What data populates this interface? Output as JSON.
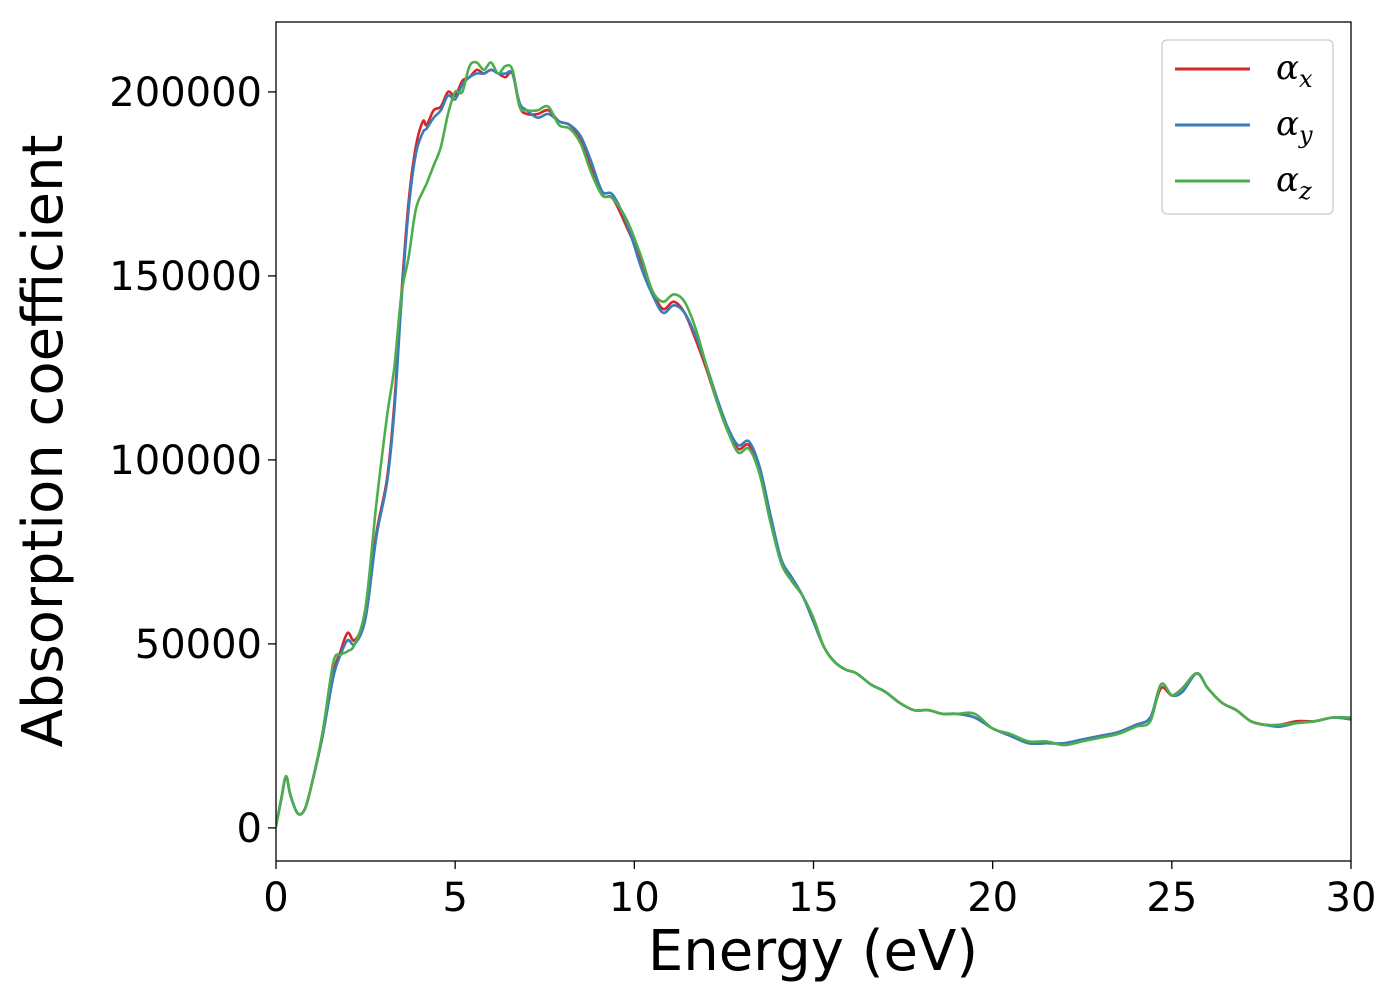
{
  "chart_data": {
    "type": "line",
    "title": "",
    "xlabel": "Energy (eV)",
    "ylabel": "Absorption coefficient",
    "xlim": [
      0,
      30
    ],
    "ylim": [
      -9000,
      219000
    ],
    "xticks": [
      0,
      5,
      10,
      15,
      20,
      25,
      30
    ],
    "xtick_labels": [
      "0",
      "5",
      "10",
      "15",
      "20",
      "25",
      "30"
    ],
    "yticks": [
      0,
      50000,
      100000,
      150000,
      200000
    ],
    "ytick_labels": [
      "0",
      "50000",
      "100000",
      "150000",
      "200000"
    ],
    "grid": false,
    "legend_position": "top-right",
    "series": [
      {
        "name": "αx",
        "legend_base": "α",
        "legend_sub": "x",
        "color": "#d62728",
        "x": [
          0,
          0.15,
          0.28,
          0.4,
          0.6,
          0.8,
          1.0,
          1.3,
          1.6,
          1.8,
          2.0,
          2.2,
          2.5,
          2.8,
          3.1,
          3.3,
          3.5,
          3.7,
          3.9,
          4.1,
          4.2,
          4.4,
          4.6,
          4.8,
          5.0,
          5.2,
          5.4,
          5.6,
          5.8,
          6.0,
          6.2,
          6.4,
          6.6,
          6.8,
          7.0,
          7.3,
          7.6,
          7.9,
          8.2,
          8.5,
          8.8,
          9.1,
          9.4,
          9.8,
          10.2,
          10.5,
          10.8,
          11.1,
          11.4,
          11.7,
          12.0,
          12.3,
          12.6,
          12.9,
          13.2,
          13.5,
          13.8,
          14.1,
          14.4,
          14.7,
          15.0,
          15.3,
          15.6,
          15.9,
          16.2,
          16.6,
          17.0,
          17.4,
          17.8,
          18.2,
          18.6,
          19.0,
          19.5,
          20.0,
          20.5,
          21.0,
          21.5,
          22.0,
          22.5,
          23.0,
          23.5,
          24.0,
          24.4,
          24.7,
          25.0,
          25.3,
          25.7,
          26.0,
          26.4,
          26.8,
          27.2,
          27.6,
          28.0,
          28.5,
          29.0,
          29.5,
          30.0
        ],
        "values": [
          500,
          8000,
          14000,
          9000,
          4000,
          5000,
          12000,
          25000,
          42000,
          48000,
          53000,
          51000,
          58000,
          80000,
          95000,
          115000,
          145000,
          170000,
          185000,
          192000,
          191000,
          195000,
          196000,
          200000,
          199000,
          203000,
          204000,
          206000,
          205000,
          206000,
          205000,
          204000,
          205000,
          196000,
          194000,
          194000,
          195000,
          192000,
          191000,
          187000,
          179000,
          172000,
          171000,
          163000,
          154000,
          146000,
          141000,
          143000,
          140000,
          133000,
          125000,
          116000,
          108000,
          103000,
          104000,
          97000,
          84000,
          72000,
          67000,
          63000,
          56000,
          49000,
          45000,
          43000,
          42000,
          39000,
          37000,
          34000,
          32000,
          32000,
          31000,
          31000,
          30000,
          27000,
          25000,
          23000,
          23000,
          23000,
          24000,
          25000,
          26000,
          28000,
          30000,
          38000,
          36000,
          38000,
          42000,
          38000,
          34000,
          32000,
          29000,
          28000,
          28000,
          29000,
          29000,
          30000,
          29500
        ]
      },
      {
        "name": "αy",
        "legend_base": "α",
        "legend_sub": "y",
        "color": "#3a7dba",
        "x": [
          0,
          0.15,
          0.28,
          0.4,
          0.6,
          0.8,
          1.0,
          1.3,
          1.6,
          1.8,
          2.0,
          2.2,
          2.5,
          2.8,
          3.1,
          3.3,
          3.5,
          3.7,
          3.9,
          4.1,
          4.2,
          4.4,
          4.6,
          4.8,
          5.0,
          5.2,
          5.4,
          5.6,
          5.8,
          6.0,
          6.2,
          6.4,
          6.6,
          6.8,
          7.0,
          7.3,
          7.6,
          7.9,
          8.2,
          8.5,
          8.8,
          9.1,
          9.4,
          9.8,
          10.2,
          10.5,
          10.8,
          11.1,
          11.4,
          11.7,
          12.0,
          12.3,
          12.6,
          12.9,
          13.2,
          13.5,
          13.8,
          14.1,
          14.4,
          14.7,
          15.0,
          15.3,
          15.6,
          15.9,
          16.2,
          16.6,
          17.0,
          17.4,
          17.8,
          18.2,
          18.6,
          19.0,
          19.5,
          20.0,
          20.5,
          21.0,
          21.5,
          22.0,
          22.5,
          23.0,
          23.5,
          24.0,
          24.4,
          24.7,
          25.0,
          25.3,
          25.7,
          26.0,
          26.4,
          26.8,
          27.2,
          27.6,
          28.0,
          28.5,
          29.0,
          29.5,
          30.0
        ],
        "values": [
          500,
          8000,
          14000,
          9000,
          4000,
          5000,
          12000,
          25000,
          41000,
          47000,
          51000,
          50000,
          57000,
          79000,
          94000,
          113000,
          143000,
          168000,
          183000,
          189000,
          190000,
          193000,
          195000,
          199000,
          198000,
          202000,
          204000,
          205000,
          205000,
          206000,
          205000,
          205000,
          205000,
          197000,
          195000,
          193000,
          194000,
          192000,
          191000,
          188000,
          181000,
          173000,
          172000,
          164000,
          152000,
          145000,
          140000,
          142000,
          140000,
          134000,
          126000,
          117000,
          109000,
          104000,
          105000,
          98000,
          85000,
          73000,
          68000,
          63000,
          56000,
          49000,
          45000,
          43000,
          42000,
          39000,
          37000,
          34000,
          32000,
          32000,
          31000,
          31000,
          30000,
          27000,
          25000,
          23000,
          23000,
          23000,
          24000,
          25000,
          26000,
          28000,
          30000,
          39000,
          36000,
          37000,
          42000,
          38000,
          34000,
          32000,
          29000,
          28000,
          27500,
          28500,
          29000,
          30000,
          29500
        ]
      },
      {
        "name": "αz",
        "legend_base": "α",
        "legend_sub": "z",
        "color": "#4cae4c",
        "x": [
          0,
          0.15,
          0.28,
          0.4,
          0.6,
          0.8,
          1.0,
          1.3,
          1.6,
          1.8,
          2.0,
          2.2,
          2.5,
          2.8,
          3.1,
          3.3,
          3.5,
          3.7,
          3.9,
          4.1,
          4.2,
          4.4,
          4.6,
          4.8,
          5.0,
          5.2,
          5.4,
          5.6,
          5.8,
          6.0,
          6.2,
          6.4,
          6.6,
          6.8,
          7.0,
          7.3,
          7.6,
          7.9,
          8.2,
          8.5,
          8.8,
          9.1,
          9.4,
          9.8,
          10.2,
          10.5,
          10.8,
          11.1,
          11.4,
          11.7,
          12.0,
          12.3,
          12.6,
          12.9,
          13.2,
          13.5,
          13.8,
          14.1,
          14.4,
          14.7,
          15.0,
          15.3,
          15.6,
          15.9,
          16.2,
          16.6,
          17.0,
          17.4,
          17.8,
          18.2,
          18.6,
          19.0,
          19.5,
          20.0,
          20.5,
          21.0,
          21.5,
          22.0,
          22.5,
          23.0,
          23.5,
          24.0,
          24.4,
          24.7,
          25.0,
          25.3,
          25.7,
          26.0,
          26.4,
          26.8,
          27.2,
          27.6,
          28.0,
          28.5,
          29.0,
          29.5,
          30.0
        ],
        "values": [
          500,
          8000,
          14000,
          9000,
          4000,
          5000,
          12000,
          26000,
          45000,
          47000,
          48000,
          50000,
          60000,
          88000,
          112000,
          125000,
          145000,
          155000,
          168000,
          173000,
          175000,
          180000,
          185000,
          194000,
          200000,
          200000,
          207000,
          208000,
          206000,
          208000,
          205000,
          207000,
          206000,
          196000,
          195000,
          195000,
          196000,
          191000,
          190000,
          186000,
          178000,
          172000,
          171000,
          165000,
          155000,
          146000,
          143000,
          145000,
          143000,
          136000,
          126000,
          116000,
          108000,
          102000,
          103000,
          96000,
          83000,
          72000,
          67000,
          63000,
          57000,
          49000,
          45000,
          43000,
          42000,
          39000,
          37000,
          34000,
          32000,
          32000,
          31000,
          31000,
          31000,
          27000,
          25500,
          23500,
          23500,
          22500,
          23500,
          24500,
          25500,
          27500,
          29000,
          39000,
          36000,
          38000,
          42000,
          38000,
          34000,
          32000,
          29000,
          28000,
          28000,
          28500,
          29000,
          30000,
          30000
        ]
      }
    ]
  }
}
